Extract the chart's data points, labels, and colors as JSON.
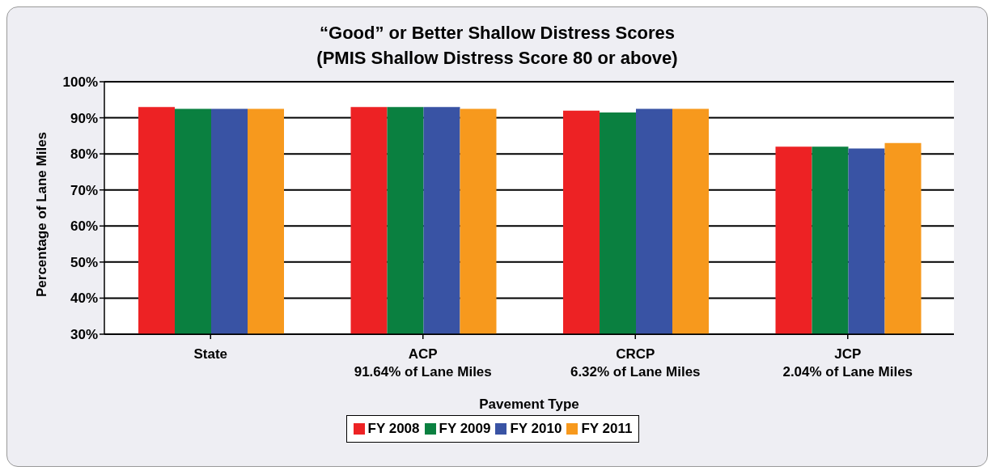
{
  "chart_data": {
    "type": "bar",
    "title": "“Good” or Better Shallow Distress Scores",
    "subtitle": "(PMIS Shallow Distress Score 80 or above)",
    "xlabel": "Pavement Type",
    "ylabel": "Percentage of Lane Miles",
    "categories": [
      "State",
      "ACP\n91.64% of Lane Miles",
      "CRCP\n6.32% of Lane Miles",
      "JCP\n2.04% of Lane Miles"
    ],
    "series": [
      {
        "name": "FY 2008",
        "color": "#ed2224",
        "values": [
          93,
          93,
          92,
          82
        ]
      },
      {
        "name": "FY 2009",
        "color": "#0a8040",
        "values": [
          92.5,
          93,
          91.5,
          82
        ]
      },
      {
        "name": "FY 2010",
        "color": "#3953a4",
        "values": [
          92.5,
          93,
          92.5,
          81.5
        ]
      },
      {
        "name": "FY 2011",
        "color": "#f7991d",
        "values": [
          92.5,
          92.5,
          92.5,
          83
        ]
      }
    ],
    "ylim": [
      30,
      100
    ],
    "yticks": [
      {
        "value": 30,
        "label": "30%"
      },
      {
        "value": 40,
        "label": "40%"
      },
      {
        "value": 50,
        "label": "50%"
      },
      {
        "value": 60,
        "label": "60%"
      },
      {
        "value": 70,
        "label": "70%"
      },
      {
        "value": 80,
        "label": "80%"
      },
      {
        "value": 90,
        "label": "90%"
      },
      {
        "value": 100,
        "label": "100%"
      }
    ],
    "grid": "y",
    "legend": "bottom"
  }
}
